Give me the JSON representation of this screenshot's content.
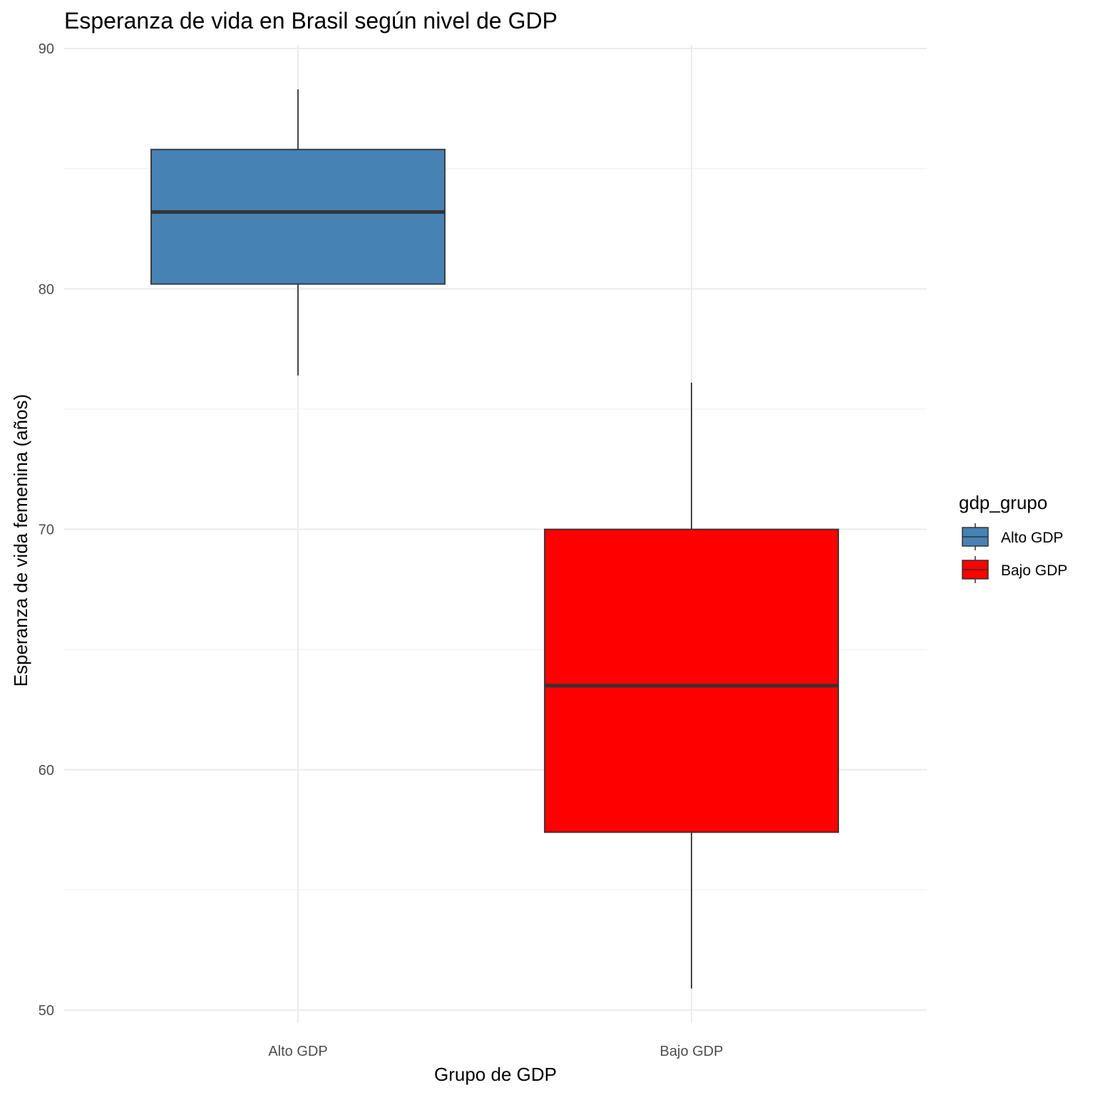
{
  "chart_data": {
    "type": "boxplot",
    "title": "Esperanza de vida en Brasil según nivel de GDP",
    "xlabel": "Grupo de GDP",
    "ylabel": "Esperanza de vida femenina (años)",
    "categories": [
      "Alto GDP",
      "Bajo GDP"
    ],
    "ylim": [
      49.5,
      90
    ],
    "yticks": [
      50,
      60,
      70,
      80,
      90
    ],
    "grid": true,
    "legend": {
      "title": "gdp_grupo",
      "position": "right",
      "entries": [
        {
          "label": "Alto GDP",
          "color": "#4682B4"
        },
        {
          "label": "Bajo GDP",
          "color": "#FF0000"
        }
      ]
    },
    "series": [
      {
        "category": "Alto GDP",
        "color": "#4682B4",
        "whisker_low": 76.4,
        "q1": 80.2,
        "median": 83.2,
        "q3": 85.8,
        "whisker_high": 88.3
      },
      {
        "category": "Bajo GDP",
        "color": "#FF0000",
        "whisker_low": 50.9,
        "q1": 57.4,
        "median": 63.5,
        "q3": 70.0,
        "whisker_high": 76.1
      }
    ]
  }
}
